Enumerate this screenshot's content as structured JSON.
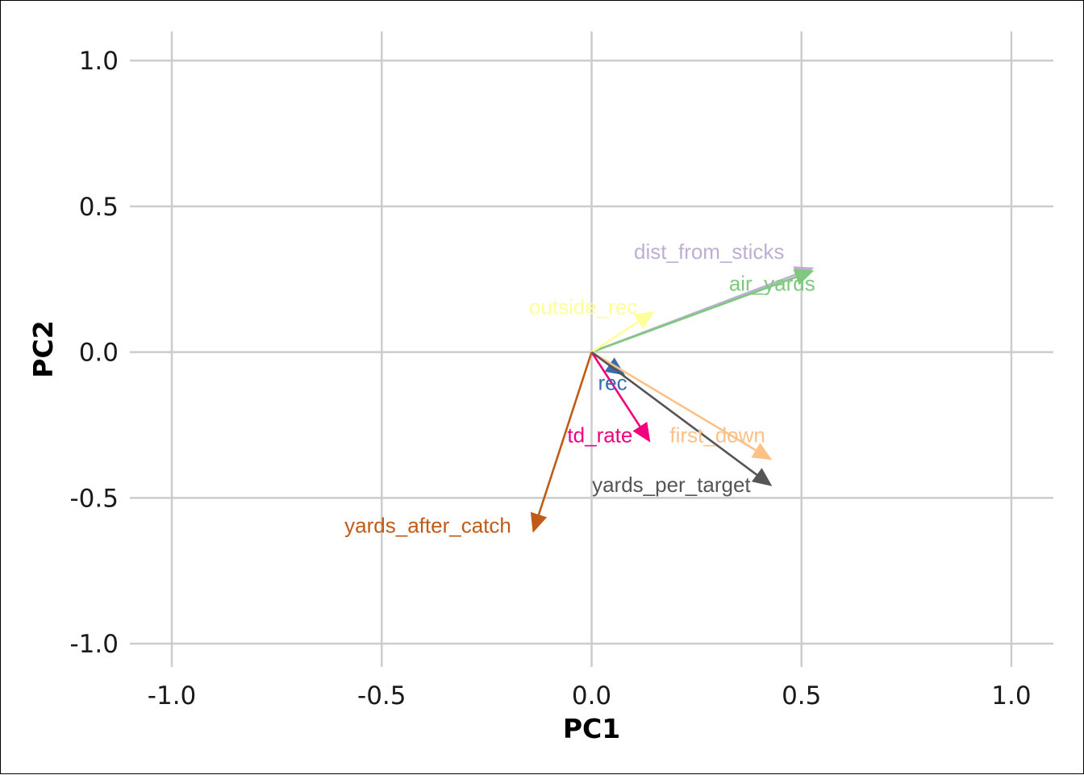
{
  "chart_data": {
    "type": "biplot-vectors",
    "xlabel": "PC1",
    "ylabel": "PC2",
    "xlim": [
      -1.1,
      1.1
    ],
    "ylim": [
      -1.08,
      1.1
    ],
    "xticks": [
      -1.0,
      -0.5,
      0.0,
      0.5,
      1.0
    ],
    "yticks": [
      -1.0,
      -0.5,
      0.0,
      0.5,
      1.0
    ],
    "xtick_labels": [
      "-1.0",
      "-0.5",
      "0.0",
      "0.5",
      "1.0"
    ],
    "ytick_labels": [
      "-1.0",
      "-0.5",
      "0.0",
      "0.5",
      "1.0"
    ],
    "grid": true,
    "vectors": [
      {
        "label": "dist_from_sticks",
        "x": 0.53,
        "y": 0.29,
        "color": "#BEAED4",
        "label_x": 0.28,
        "label_y": 0.32
      },
      {
        "label": "air_yards",
        "x": 0.53,
        "y": 0.28,
        "color": "#7FC97F",
        "label_x": 0.43,
        "label_y": 0.21
      },
      {
        "label": "outside_rec",
        "x": 0.15,
        "y": 0.14,
        "color": "#FFFF99",
        "label_x": -0.02,
        "label_y": 0.13
      },
      {
        "label": "rec",
        "x": 0.08,
        "y": -0.08,
        "color": "#386CB0",
        "label_x": 0.05,
        "label_y": -0.13
      },
      {
        "label": "td_rate",
        "x": 0.14,
        "y": -0.31,
        "color": "#F0027F",
        "label_x": 0.02,
        "label_y": -0.31
      },
      {
        "label": "first_down",
        "x": 0.43,
        "y": -0.37,
        "color": "#FDC086",
        "label_x": 0.3,
        "label_y": -0.31
      },
      {
        "label": "yards_per_target",
        "x": 0.43,
        "y": -0.46,
        "color": "#555555",
        "label_x": 0.19,
        "label_y": -0.48
      },
      {
        "label": "yards_after_catch",
        "x": -0.14,
        "y": -0.62,
        "color": "#BF5B17",
        "label_x": -0.39,
        "label_y": -0.62
      }
    ]
  }
}
